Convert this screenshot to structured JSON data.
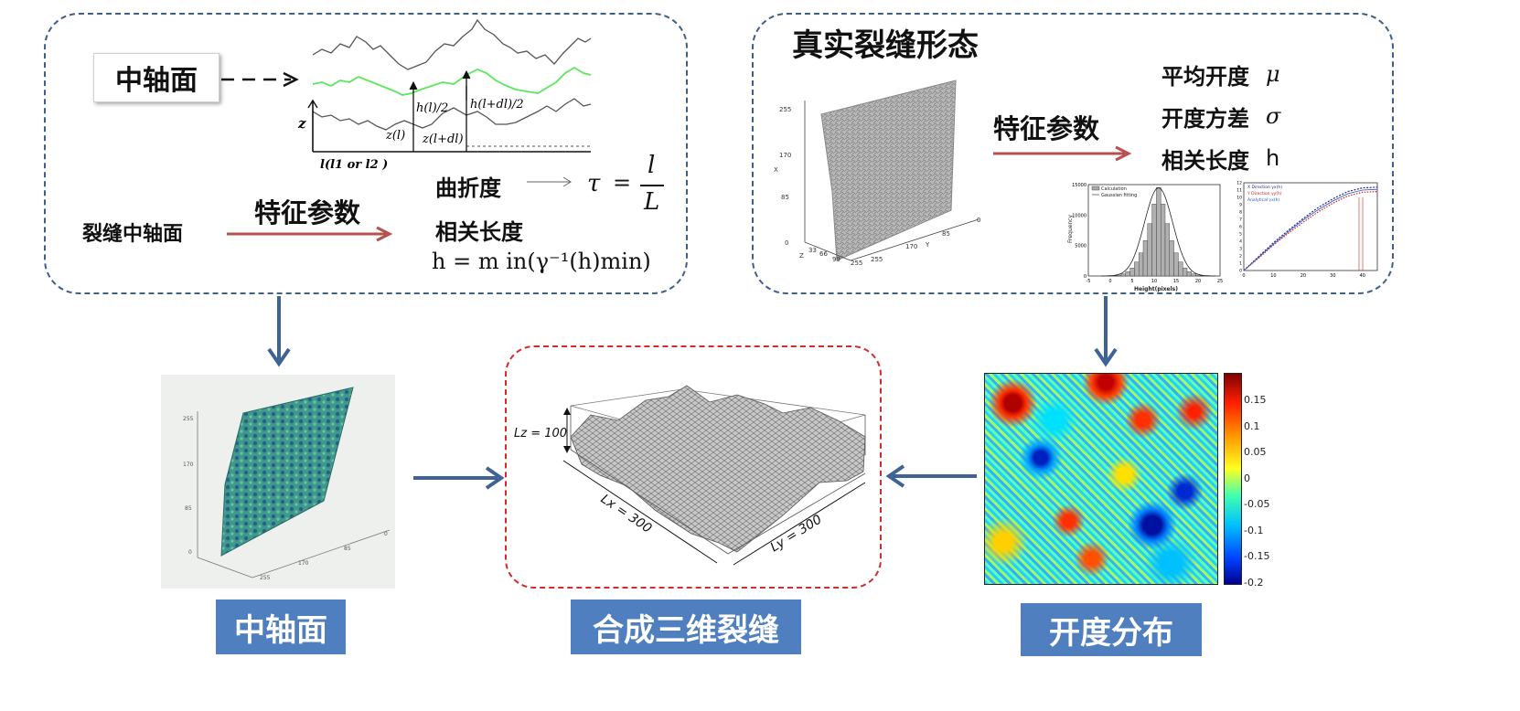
{
  "left_panel": {
    "axis_box_label": "中轴面",
    "curve_labels": {
      "z_axis": "z",
      "h_l": "h(l)/2",
      "h_l_dl": "h(l+dl)/2",
      "z_l": "z(l)",
      "z_l_dl": "z(l+dl)",
      "x_axis": "l(l1 or l2 )"
    },
    "feature_label": "特征参数",
    "source_label": "裂缝中轴面",
    "tortuosity_label": "曲折度",
    "tortuosity_formula": "τ = l / L",
    "tau": "τ",
    "eq": "=",
    "frac_num": "l",
    "frac_den": "L",
    "corr_label": "相关长度",
    "corr_formula": "h = m in(γ⁻¹(h)min)"
  },
  "right_panel": {
    "title": "真实裂缝形态",
    "feature_label": "特征参数",
    "params": [
      {
        "label": "平均开度",
        "symbol": "μ"
      },
      {
        "label": "开度方差",
        "symbol": "σ"
      },
      {
        "label": "相关长度",
        "symbol": "h"
      }
    ],
    "surface_ticks_x": [
      "255",
      "170",
      "85",
      "0"
    ],
    "surface_ticks_y": [
      "0",
      "85",
      "170",
      "255"
    ],
    "surface_ticks_z": [
      "33",
      "66",
      "99",
      "255"
    ],
    "axis_x": "X",
    "axis_y": "Y",
    "axis_z": "Z"
  },
  "histogram": {
    "legend": [
      "Calculation",
      "Gaussian fitting"
    ],
    "ylabel": "Frequency",
    "xlabel": "Height(pixels)",
    "yticks": [
      "0",
      "5000",
      "10000",
      "15000"
    ],
    "xticks": [
      "-5",
      "0",
      "5",
      "10",
      "15",
      "20",
      "25"
    ]
  },
  "chart_data": [
    {
      "type": "bar",
      "xlabel": "Height(pixels)",
      "ylabel": "Frequency",
      "categories": [
        "0",
        "1",
        "2",
        "3",
        "4",
        "5",
        "6",
        "7",
        "8",
        "9",
        "10",
        "11",
        "12",
        "13",
        "14",
        "15",
        "16",
        "17",
        "18",
        "19",
        "20",
        "21"
      ],
      "values": [
        20,
        60,
        150,
        350,
        700,
        1300,
        2300,
        3800,
        5800,
        8600,
        11800,
        14500,
        11800,
        8600,
        5800,
        3800,
        2300,
        1300,
        700,
        350,
        150,
        60
      ],
      "series_names": [
        "Calculation",
        "Gaussian fitting"
      ],
      "xlim": [
        -5,
        25
      ],
      "ylim": [
        0,
        15000
      ]
    },
    {
      "type": "line",
      "x": [
        0,
        5,
        10,
        15,
        20,
        25,
        30,
        35,
        40,
        45
      ],
      "series": [
        {
          "name": "X Direction",
          "values": [
            0,
            1.9,
            3.8,
            5.5,
            7.1,
            8.6,
            9.8,
            10.8,
            11.3,
            11.4
          ]
        },
        {
          "name": "Y Direction",
          "values": [
            0,
            1.7,
            3.5,
            5.1,
            6.6,
            8.0,
            9.2,
            10.2,
            10.7,
            10.8
          ]
        },
        {
          "name": "Analytical",
          "values": [
            0,
            1.8,
            3.6,
            5.3,
            6.9,
            8.3,
            9.5,
            10.5,
            11.0,
            11.1
          ]
        }
      ],
      "xticks": [
        "0",
        "10",
        "20",
        "30",
        "40"
      ],
      "yticks": [
        "0",
        "1",
        "2",
        "3",
        "4",
        "5",
        "6",
        "7",
        "8",
        "9",
        "10",
        "11",
        "12"
      ],
      "xlim": [
        0,
        45
      ],
      "ylim": [
        0,
        12
      ]
    }
  ],
  "variogram": {
    "legend": [
      "X Direction γx(h)",
      "Y Direction γy(h)",
      "Analytical γx(h)"
    ],
    "xticks": [
      "0",
      "10",
      "20",
      "30",
      "40"
    ],
    "yticks": [
      "0",
      "1",
      "2",
      "3",
      "4",
      "5",
      "6",
      "7",
      "8",
      "9",
      "10",
      "11",
      "12"
    ]
  },
  "center": {
    "lz": "Lz = 100",
    "lx": "Lx = 300",
    "ly": "Ly = 300"
  },
  "colorbar": {
    "ticks": [
      "0.15",
      "0.1",
      "0.05",
      "0",
      "-0.05",
      "-0.1",
      "-0.15",
      "-0.2"
    ],
    "colors": [
      "#7f0000",
      "#ff2000",
      "#ff9a00",
      "#ffff20",
      "#40ffb0",
      "#00c0ff",
      "#0040ff",
      "#00008f"
    ]
  },
  "left_image_ticks": {
    "x": [
      "255",
      "170",
      "85",
      "0"
    ],
    "y": [
      "0",
      "85",
      "170",
      "255"
    ]
  },
  "bottom_labels": {
    "left": "中轴面",
    "center": "合成三维裂缝",
    "right": "开度分布"
  },
  "colors": {
    "panel_border": "#3f5f8a",
    "center_border": "#d42a2a",
    "arrow_blue": "#3e6394",
    "arrow_red": "#b85050",
    "label_bar": "#4f7fbf",
    "mid_curve": "#5ee65e"
  }
}
